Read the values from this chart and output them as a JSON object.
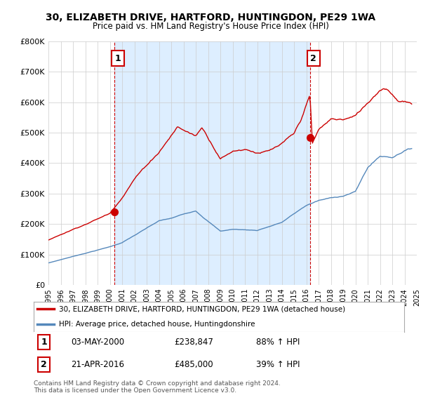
{
  "title": "30, ELIZABETH DRIVE, HARTFORD, HUNTINGDON, PE29 1WA",
  "subtitle": "Price paid vs. HM Land Registry's House Price Index (HPI)",
  "red_label": "30, ELIZABETH DRIVE, HARTFORD, HUNTINGDON, PE29 1WA (detached house)",
  "blue_label": "HPI: Average price, detached house, Huntingdonshire",
  "sale1_date": "03-MAY-2000",
  "sale1_price": "£238,847",
  "sale1_hpi": "88% ↑ HPI",
  "sale2_date": "21-APR-2016",
  "sale2_price": "£485,000",
  "sale2_hpi": "39% ↑ HPI",
  "footnote": "Contains HM Land Registry data © Crown copyright and database right 2024.\nThis data is licensed under the Open Government Licence v3.0.",
  "red_color": "#cc0000",
  "blue_color": "#5588bb",
  "shade_color": "#ddeeff",
  "background_color": "#ffffff",
  "grid_color": "#cccccc",
  "ylim": [
    0,
    800000
  ],
  "yticks": [
    0,
    100000,
    200000,
    300000,
    400000,
    500000,
    600000,
    700000,
    800000
  ],
  "ytick_labels": [
    "£0",
    "£100K",
    "£200K",
    "£300K",
    "£400K",
    "£500K",
    "£600K",
    "£700K",
    "£800K"
  ],
  "sale1_x": 2000.37,
  "sale1_y": 238847,
  "sale2_x": 2016.29,
  "sale2_y": 485000,
  "vline1_x": 2000.37,
  "vline2_x": 2016.29,
  "xlim": [
    1995.0,
    2025.0
  ],
  "xtick_years": [
    1995,
    1996,
    1997,
    1998,
    1999,
    2000,
    2001,
    2002,
    2003,
    2004,
    2005,
    2006,
    2007,
    2008,
    2009,
    2010,
    2011,
    2012,
    2013,
    2014,
    2015,
    2016,
    2017,
    2018,
    2019,
    2020,
    2021,
    2022,
    2023,
    2024,
    2025
  ]
}
